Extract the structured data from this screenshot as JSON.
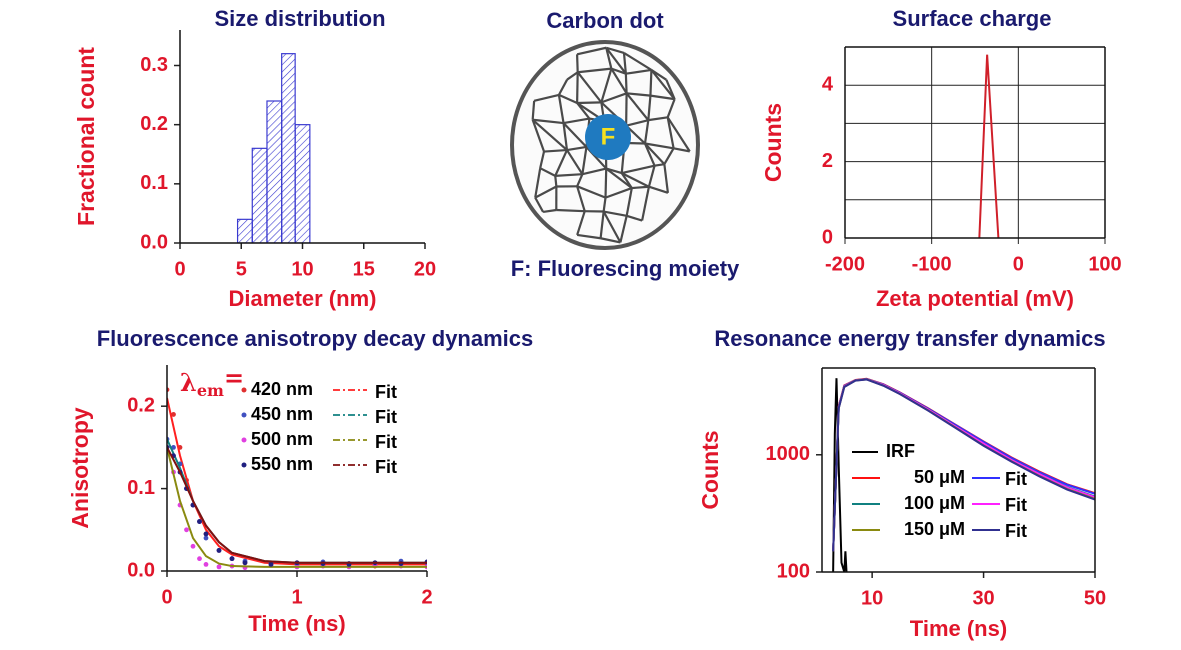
{
  "diagram": {
    "title": "Carbon dot",
    "core_label": "F",
    "caption": "F: Fluorescing moiety"
  },
  "chart_data": [
    {
      "type": "histogram",
      "title": "Size distribution",
      "x_label": "Diameter (nm)",
      "y_label": "Fractional count",
      "bins": [
        4.7,
        5.9,
        7.1,
        8.3,
        9.4,
        10.6
      ],
      "values": [
        0.04,
        0.16,
        0.24,
        0.32,
        0.2
      ],
      "color": "#3a3ad0",
      "xlim": [
        0,
        20
      ],
      "ylim": [
        0,
        0.36
      ],
      "xticks": [
        0,
        5,
        10,
        15,
        20
      ],
      "yticks": [
        {
          "value": 0,
          "label": "0.0"
        },
        0.1,
        0.2,
        0.3
      ]
    },
    {
      "type": "line",
      "title": "Surface charge",
      "x_label": "Zeta potential (mV)",
      "y_label": "Counts",
      "x": [
        -45,
        -36,
        -23
      ],
      "series": [
        {
          "color": "#d0202a",
          "values": [
            0,
            4.8,
            0
          ]
        }
      ],
      "xlim": [
        -200,
        100
      ],
      "ylim": [
        0,
        5
      ],
      "xticks": [
        -200,
        -100,
        0,
        100
      ],
      "yticks": [
        0,
        2,
        4
      ],
      "grid": true,
      "grid_yticks": [
        1,
        3,
        5
      ],
      "frame": true
    },
    {
      "type": "scatter",
      "title": "Fluorescence anisotropy decay dynamics",
      "x_label": "Time (ns)",
      "y_label": "Anisotropy",
      "legend_title": [
        "λ",
        "em",
        "="
      ],
      "x": [
        0,
        0.05,
        0.1,
        0.15,
        0.2,
        0.25,
        0.3,
        0.4,
        0.5,
        0.6,
        0.8,
        1,
        1.2,
        1.4,
        1.6,
        1.8,
        2
      ],
      "series": [
        {
          "name": "420 nm",
          "mode": "markers",
          "color": "#e03030",
          "values": [
            0.22,
            0.19,
            0.15,
            0.11,
            0.08,
            0.06,
            0.045,
            0.025,
            0.015,
            0.01,
            0.008,
            0.01,
            0.007,
            0.009,
            0.006,
            0.01,
            0.008
          ]
        },
        {
          "name": "Fit",
          "mode": "lines",
          "color": "#ff2020",
          "x": [
            0,
            0.1,
            0.2,
            0.3,
            0.4,
            0.5,
            0.75,
            1,
            1.5,
            2
          ],
          "values": [
            0.21,
            0.14,
            0.085,
            0.05,
            0.03,
            0.02,
            0.01,
            0.008,
            0.008,
            0.008
          ]
        },
        {
          "name": "450 nm",
          "mode": "markers",
          "color": "#4050c0",
          "values": [
            0.16,
            0.15,
            0.13,
            0.1,
            0.08,
            0.06,
            0.04,
            0.025,
            0.015,
            0.012,
            0.01,
            0.008,
            0.011,
            0.009,
            0.01,
            0.012,
            0.01
          ]
        },
        {
          "name": "Fit",
          "mode": "lines",
          "color": "#108080",
          "x": [
            0,
            0.1,
            0.2,
            0.3,
            0.4,
            0.5,
            0.75,
            1,
            1.5,
            2
          ],
          "values": [
            0.16,
            0.125,
            0.085,
            0.055,
            0.035,
            0.022,
            0.012,
            0.01,
            0.01,
            0.01
          ]
        },
        {
          "name": "500 nm",
          "mode": "markers",
          "color": "#e040e0",
          "values": [
            0.15,
            0.12,
            0.08,
            0.05,
            0.03,
            0.015,
            0.008,
            0.005,
            0.006,
            0.004,
            0.007,
            0.005,
            0.006,
            0.005,
            0.007,
            0.006,
            0.005
          ]
        },
        {
          "name": "Fit",
          "mode": "lines",
          "color": "#8a8a10",
          "x": [
            0,
            0.1,
            0.2,
            0.3,
            0.4,
            0.5,
            0.75,
            1,
            1.5,
            2
          ],
          "values": [
            0.15,
            0.085,
            0.04,
            0.018,
            0.009,
            0.006,
            0.005,
            0.005,
            0.005,
            0.005
          ]
        },
        {
          "name": "550 nm",
          "mode": "markers",
          "color": "#202080",
          "values": [
            0.15,
            0.14,
            0.12,
            0.1,
            0.08,
            0.06,
            0.045,
            0.025,
            0.015,
            0.01,
            0.008,
            0.01,
            0.009,
            0.008,
            0.01,
            0.009,
            0.011
          ]
        },
        {
          "name": "Fit",
          "mode": "lines",
          "color": "#801010",
          "x": [
            0,
            0.1,
            0.2,
            0.3,
            0.4,
            0.5,
            0.75,
            1,
            1.5,
            2
          ],
          "values": [
            0.15,
            0.12,
            0.085,
            0.055,
            0.035,
            0.022,
            0.012,
            0.01,
            0.01,
            0.01
          ]
        }
      ],
      "xlim": [
        0,
        2
      ],
      "ylim": [
        0,
        0.25
      ],
      "xticks": [
        0,
        1,
        2
      ],
      "yticks": [
        {
          "value": 0,
          "label": "0.0"
        },
        0.1,
        0.2
      ]
    },
    {
      "type": "line",
      "title": "Resonance energy transfer dynamics",
      "x_label": "Time (ns)",
      "y_label": "Counts",
      "log_y": true,
      "frame": true,
      "x": [
        3,
        4,
        5,
        7,
        9,
        12,
        15,
        20,
        25,
        30,
        35,
        40,
        45,
        50
      ],
      "series": [
        {
          "name": "IRF",
          "color": "#000000",
          "x": [
            3,
            3.3,
            3.6,
            4,
            4.5,
            5,
            5.2,
            5.4
          ],
          "values": [
            100,
            1500,
            4500,
            800,
            120,
            100,
            150,
            100
          ]
        },
        {
          "name": "50 μM",
          "color": "#ff1010",
          "values": [
            150,
            2600,
            3900,
            4350,
            4450,
            4000,
            3400,
            2500,
            1800,
            1300,
            950,
            720,
            560,
            470
          ]
        },
        {
          "name": "Fit",
          "color": "#3030ff",
          "values": [
            150,
            2550,
            3880,
            4330,
            4430,
            3980,
            3380,
            2480,
            1790,
            1290,
            940,
            710,
            555,
            465
          ]
        },
        {
          "name": "100 μM",
          "color": "#108080",
          "values": [
            150,
            2550,
            3850,
            4320,
            4420,
            3950,
            3350,
            2450,
            1750,
            1250,
            910,
            690,
            530,
            440
          ]
        },
        {
          "name": "Fit",
          "color": "#ff20ff",
          "values": [
            150,
            2540,
            3840,
            4310,
            4410,
            3940,
            3340,
            2440,
            1740,
            1245,
            905,
            685,
            525,
            435
          ]
        },
        {
          "name": "150 μM",
          "color": "#8a8a10",
          "values": [
            150,
            2500,
            3800,
            4300,
            4400,
            3900,
            3300,
            2400,
            1700,
            1200,
            880,
            660,
            510,
            420
          ]
        },
        {
          "name": "Fit",
          "color": "#303090",
          "values": [
            150,
            2490,
            3790,
            4290,
            4390,
            3890,
            3290,
            2390,
            1690,
            1195,
            875,
            655,
            505,
            415
          ]
        }
      ],
      "xlim": [
        1,
        50
      ],
      "ylim": [
        100,
        5500
      ],
      "xticks": [
        10,
        30,
        50
      ],
      "yticks": [
        100,
        1000
      ]
    }
  ]
}
